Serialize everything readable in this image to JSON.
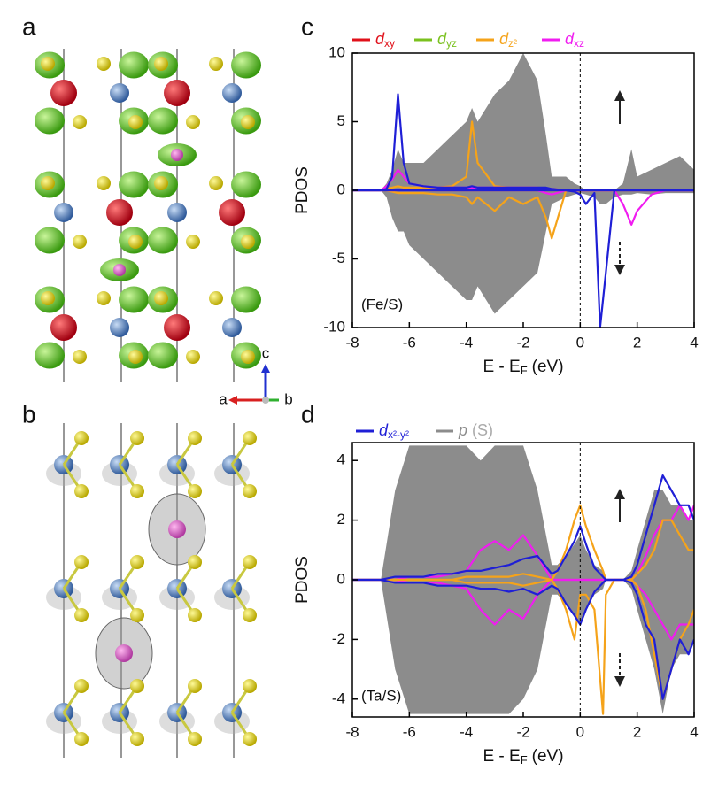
{
  "panels": [
    "a",
    "b",
    "c",
    "d"
  ],
  "triad_labels": [
    "a",
    "b",
    "c"
  ],
  "chart_data": [
    {
      "type": "line",
      "annotation": "(Fe/S)",
      "ylabel": "PDOS",
      "xlabel": {
        "text": "E - E",
        "sub": "F",
        "unit": "(eV)"
      },
      "xlim": [
        -8,
        4
      ],
      "xticks": [
        -8,
        -6,
        -4,
        -2,
        0,
        2,
        4
      ],
      "ylim": [
        -10,
        10
      ],
      "yticks": [
        -10,
        -5,
        0,
        5,
        10
      ],
      "x": [
        -8,
        -7,
        -6.8,
        -6.6,
        -6.4,
        -6.2,
        -6,
        -5.5,
        -5,
        -4.5,
        -4,
        -3.8,
        -3.6,
        -3,
        -2.5,
        -2,
        -1.5,
        -1.2,
        -1,
        -0.5,
        -0.2,
        0,
        0.2,
        0.5,
        0.7,
        0.9,
        1.2,
        1.5,
        1.8,
        2,
        2.5,
        3,
        3.5,
        4
      ],
      "series": [
        {
          "color": "#8c8c8c",
          "fill": true,
          "up": [
            0,
            0,
            0.5,
            1.5,
            3,
            2,
            2,
            2,
            3,
            4,
            5,
            6,
            5,
            7,
            8,
            10,
            8,
            4,
            1,
            1,
            0.5,
            0.3,
            0,
            0,
            0,
            0,
            0,
            0.5,
            3,
            1,
            1.5,
            2,
            2.5,
            1.5
          ],
          "down": [
            0,
            0,
            -0.5,
            -2,
            -3,
            -3,
            -4,
            -5,
            -6,
            -7,
            -8,
            -8,
            -7,
            -9,
            -8,
            -7,
            -6,
            -3,
            -1,
            -0.5,
            -0.3,
            -0.2,
            -0.3,
            -0.5,
            -1,
            -1,
            -0.5,
            -0.3,
            -0.3,
            -0.2,
            -0.3,
            -0.2,
            -0.2,
            -0.2
          ]
        },
        {
          "name": "d",
          "sub": "xy",
          "color": "#e0101a",
          "up": [
            0,
            0,
            0,
            0,
            0,
            0,
            0,
            0,
            0,
            0,
            0,
            0,
            0,
            0,
            0,
            0,
            0,
            0,
            0,
            0,
            0,
            0,
            0,
            0,
            0,
            0,
            0,
            0,
            0,
            0,
            0,
            0,
            0,
            0
          ]
        },
        {
          "name": "d",
          "sub": "yz",
          "color": "#7ac11e",
          "up": [
            0,
            0,
            0,
            0,
            0,
            0,
            0,
            0,
            0,
            0,
            0,
            0,
            0,
            0,
            0,
            0,
            0,
            0,
            0,
            0,
            0,
            0,
            0,
            0,
            0,
            0,
            0,
            0,
            0,
            0,
            0,
            0,
            0,
            0
          ]
        },
        {
          "name": "d",
          "sub": "z²",
          "color": "#f5a31a",
          "up": [
            0,
            0,
            0.1,
            0.2,
            0.3,
            0.2,
            0.2,
            0.2,
            0.2,
            0.3,
            1,
            5,
            2,
            0.3,
            0.2,
            0.2,
            0.2,
            0.1,
            0.1,
            0,
            0,
            0,
            0,
            0,
            0,
            0,
            0,
            0,
            0,
            0,
            0,
            0,
            0,
            0
          ],
          "down": [
            0,
            0,
            0,
            -0.1,
            -0.2,
            -0.2,
            -0.2,
            -0.2,
            -0.3,
            -0.3,
            -0.5,
            -1,
            -0.5,
            -1.5,
            -0.5,
            -1,
            -0.5,
            -2,
            -3.5,
            0,
            0,
            0,
            0,
            0,
            0,
            0,
            0,
            0,
            0,
            0,
            0,
            0,
            0,
            0
          ]
        },
        {
          "name": "d",
          "sub": "xz",
          "color": "#f01cf0",
          "up": [
            0,
            0,
            0.3,
            0.8,
            1.5,
            1,
            0.5,
            0.3,
            0.2,
            0.2,
            0.2,
            0.2,
            0.2,
            0.2,
            0.2,
            0.2,
            0.2,
            0.1,
            0.1,
            0,
            0,
            0,
            0,
            0,
            0,
            0,
            0,
            0,
            0,
            0,
            0,
            0,
            0,
            0
          ],
          "down": [
            0,
            0,
            0,
            0,
            0,
            0,
            0,
            0,
            0,
            0,
            0,
            0,
            0,
            0,
            0,
            0,
            0,
            -0.2,
            -0.3,
            0,
            0,
            0,
            0,
            0,
            0,
            0,
            0,
            -1,
            -2.5,
            -1.5,
            -0.3,
            0,
            0,
            0
          ]
        },
        {
          "color": "#1f1fd6",
          "up": [
            0,
            0,
            0.1,
            1,
            7,
            2,
            0.5,
            0.3,
            0.2,
            0.2,
            0.2,
            0.3,
            0.2,
            0.2,
            0.2,
            0.2,
            0.2,
            0.2,
            0.1,
            0,
            0,
            0,
            0,
            0,
            0,
            0,
            0,
            0,
            0,
            0,
            0,
            0,
            0,
            0
          ],
          "down": [
            0,
            0,
            0,
            0,
            0,
            0,
            0,
            0,
            0,
            0,
            0,
            0,
            0,
            0,
            0,
            0,
            0,
            0,
            0,
            0,
            -0.1,
            -0.3,
            -1,
            -0.2,
            -10,
            -6,
            0,
            0,
            0,
            0,
            0,
            0,
            0,
            0
          ]
        }
      ]
    },
    {
      "type": "line",
      "annotation": "(Ta/S)",
      "ylabel": "PDOS",
      "xlabel": {
        "text": "E - E",
        "sub": "F",
        "unit": "(eV)"
      },
      "xlim": [
        -8,
        4
      ],
      "xticks": [
        -8,
        -6,
        -4,
        -2,
        0,
        2,
        4
      ],
      "ylim": [
        -4.6,
        4.6
      ],
      "yticks": [
        -4,
        -2,
        0,
        2,
        4
      ],
      "x": [
        -8,
        -7,
        -6.5,
        -6,
        -5.5,
        -5,
        -4.5,
        -4,
        -3.5,
        -3,
        -2.5,
        -2,
        -1.5,
        -1,
        -0.8,
        -0.5,
        -0.2,
        0,
        0.2,
        0.5,
        0.8,
        0.9,
        1.2,
        1.5,
        1.8,
        2,
        2.3,
        2.6,
        2.9,
        3.2,
        3.5,
        3.8,
        4
      ],
      "series": [
        {
          "name": "p",
          "suffix": "(S)",
          "color": "#8c8c8c",
          "fill": true,
          "up": [
            0,
            0,
            3,
            4.5,
            4.5,
            4.5,
            4.5,
            4.5,
            4,
            4.5,
            4.5,
            4.5,
            3,
            0.5,
            0.5,
            0.8,
            1.2,
            1.5,
            1,
            0.5,
            0.3,
            0,
            0,
            0,
            0.3,
            1,
            2,
            3,
            3,
            2.5,
            2.5,
            2,
            2
          ],
          "down": [
            0,
            0,
            -3,
            -4.5,
            -4.5,
            -4.5,
            -4.5,
            -4.5,
            -4.5,
            -4.5,
            -4.5,
            -4,
            -3,
            -0.5,
            -0.5,
            -0.8,
            -1.2,
            -1.5,
            -1,
            -0.5,
            -0.3,
            0,
            0,
            0,
            -0.3,
            -1,
            -2,
            -3,
            -4.5,
            -3,
            -2.5,
            -2.5,
            -2
          ]
        },
        {
          "color": "#f01cf0",
          "up": [
            0,
            0,
            0,
            0.1,
            0.1,
            0.1,
            0.2,
            0.3,
            1,
            1.3,
            1,
            1.5,
            0.8,
            0,
            0,
            0,
            0,
            0,
            0,
            0,
            0,
            0,
            0,
            0,
            0,
            0.2,
            0.8,
            1.5,
            2,
            2,
            2.5,
            2,
            2.5
          ],
          "down": [
            0,
            0,
            0,
            -0.1,
            -0.1,
            -0.1,
            -0.2,
            -0.3,
            -1,
            -1.5,
            -1,
            -1.3,
            -0.5,
            0,
            0,
            0,
            0,
            0,
            0,
            0,
            0,
            0,
            0,
            0,
            0,
            -0.2,
            -0.5,
            -1,
            -1.5,
            -2,
            -1.5,
            -1.5,
            -1.5
          ]
        },
        {
          "color": "#f5a31a",
          "up": [
            0,
            0,
            0,
            0,
            0,
            0,
            0,
            0.1,
            0.1,
            0.1,
            0.1,
            0.2,
            0.1,
            0,
            0.3,
            1,
            2,
            2.5,
            1.8,
            1,
            0.3,
            0,
            0,
            0,
            0,
            0.2,
            0.5,
            1,
            2,
            2,
            1.5,
            1,
            1
          ],
          "down": [
            0,
            0,
            0,
            0,
            0,
            0,
            0,
            -0.1,
            -0.1,
            -0.1,
            -0.1,
            -0.2,
            -0.1,
            0,
            -0.3,
            -1,
            -2,
            -0.5,
            -0.5,
            -1,
            -4.5,
            -0.5,
            0,
            0,
            0,
            -0.2,
            -1,
            -2.5,
            -4,
            -3,
            -2,
            -1.5,
            -1
          ]
        },
        {
          "name": "d",
          "sub": "x²-y²",
          "color": "#1f1fd6",
          "up": [
            0,
            0,
            0.1,
            0.1,
            0.1,
            0.2,
            0.2,
            0.3,
            0.3,
            0.4,
            0.5,
            0.7,
            0.8,
            0.2,
            0.3,
            0.8,
            1.3,
            1.8,
            1.2,
            0.4,
            0.1,
            0,
            0,
            0,
            0.1,
            0.5,
            1.5,
            2.5,
            3.5,
            3,
            2.5,
            2.5,
            2
          ],
          "down": [
            0,
            0,
            -0.1,
            -0.1,
            -0.1,
            -0.2,
            -0.2,
            -0.2,
            -0.3,
            -0.3,
            -0.4,
            -0.3,
            -0.5,
            -0.2,
            -0.3,
            -0.8,
            -1.2,
            -1.5,
            -1,
            -0.4,
            -0.1,
            0,
            0,
            0,
            -0.1,
            -0.5,
            -1.5,
            -2,
            -4,
            -3,
            -2,
            -2.5,
            -2
          ]
        }
      ]
    }
  ]
}
